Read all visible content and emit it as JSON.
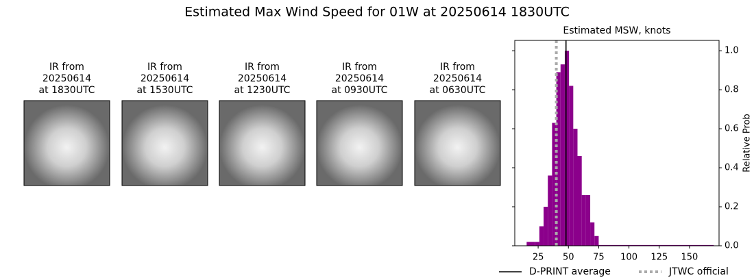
{
  "title": "Estimated Max Wind Speed for 01W at 20250614 1830UTC",
  "panels": [
    {
      "lines": [
        "IR from",
        "20250614",
        "at 1830UTC"
      ]
    },
    {
      "lines": [
        "IR from",
        "20250614",
        "at 1530UTC"
      ]
    },
    {
      "lines": [
        "IR from",
        "20250614",
        "at 1230UTC"
      ]
    },
    {
      "lines": [
        "IR from",
        "20250614",
        "at 0930UTC"
      ]
    },
    {
      "lines": [
        "IR from",
        "20250614",
        "at 0630UTC"
      ]
    }
  ],
  "chart_data": {
    "type": "histogram",
    "title": "Estimated MSW, knots",
    "y_label": "Relative Prob",
    "bins": [
      15.5,
      19,
      22.5,
      26,
      29.5,
      33,
      36.5,
      40,
      43.5,
      47,
      50.5,
      54,
      57.5,
      61,
      64.5,
      68,
      71.5,
      75,
      170
    ],
    "values": [
      0.02,
      0.02,
      0.02,
      0.1,
      0.2,
      0.36,
      0.63,
      0.89,
      0.93,
      1.0,
      0.82,
      0.6,
      0.46,
      0.26,
      0.26,
      0.12,
      0.05,
      0.004
    ],
    "color": "#8b008b",
    "lines": [
      {
        "name": "D-PRINT average",
        "value": 48,
        "color": "#000000",
        "style": "solid"
      },
      {
        "name": "JTWC official",
        "value": 40,
        "color": "#aaaaaa",
        "style": "dotted"
      }
    ],
    "xlim": [
      5.7,
      174.4
    ],
    "xticks": [
      25,
      50,
      75,
      100,
      125,
      150
    ],
    "ylim": [
      0,
      1.053
    ],
    "yticks": [
      {
        "value": 0,
        "label": "0.0"
      },
      0.2,
      0.4,
      0.6,
      0.8,
      {
        "value": 1,
        "label": "1.0"
      }
    ],
    "y_axis_side": "right"
  }
}
